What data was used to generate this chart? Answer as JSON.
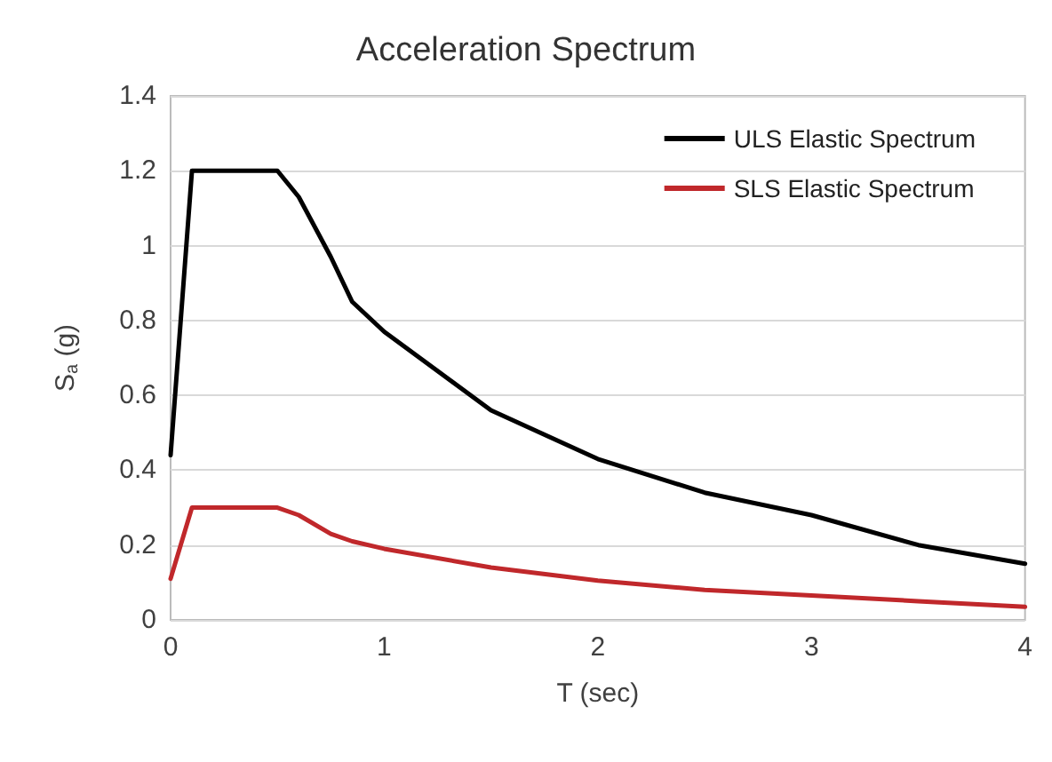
{
  "chart_data": {
    "type": "line",
    "title": "Acceleration Spectrum",
    "xlabel": "T (sec)",
    "ylabel": "S$_{a}$ (g)",
    "x": [
      0,
      0.1,
      0.5,
      0.6,
      0.75,
      0.85,
      1.0,
      1.5,
      2.0,
      2.5,
      3.0,
      3.5,
      4.0
    ],
    "series": [
      {
        "name": "ULS Elastic Spectrum",
        "color": "#000000",
        "values": [
          0.44,
          1.2,
          1.2,
          1.13,
          0.97,
          0.85,
          0.77,
          0.56,
          0.43,
          0.34,
          0.28,
          0.2,
          0.15
        ]
      },
      {
        "name": "SLS Elastic Spectrum",
        "color": "#c0282b",
        "values": [
          0.11,
          0.3,
          0.3,
          0.28,
          0.23,
          0.21,
          0.19,
          0.14,
          0.105,
          0.08,
          0.065,
          0.05,
          0.035
        ]
      }
    ],
    "xlim": [
      0,
      4
    ],
    "xticks": [
      0,
      1,
      2,
      3,
      4
    ],
    "ylim": [
      0,
      1.4
    ],
    "yticks": [
      0,
      0.2,
      0.4,
      0.6,
      0.8,
      1,
      1.2,
      1.4
    ],
    "grid": "y",
    "legend": "top right",
    "marker": "none",
    "line_style": "solid"
  }
}
